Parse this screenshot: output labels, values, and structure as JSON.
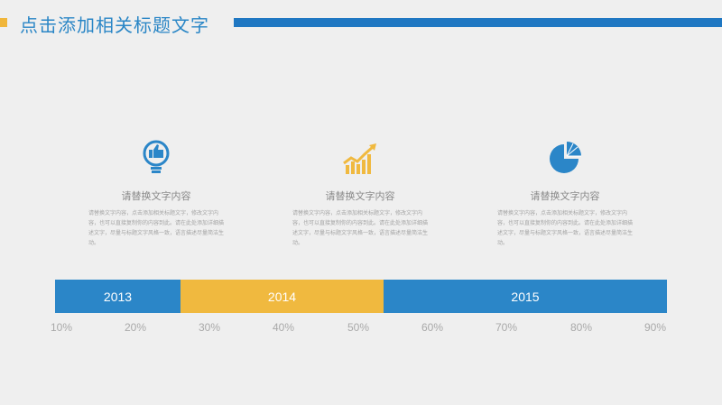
{
  "header": {
    "title": "点击添加相关标题文字",
    "colors": {
      "accent": "#f0b63b",
      "brand": "#1f77c2",
      "title": "#2a86c6"
    }
  },
  "cards": [
    {
      "icon": "lightbulb-thumbs-up-icon",
      "heading": "请替换文字内容",
      "body": "请替换文字内容，点击添加相关标题文字，修改文字内容，也可以直接复制你的内容到此。请在此处添加详细描述文字，尽量与标题文字风格一致，语言描述尽量简洁生动。"
    },
    {
      "icon": "growth-chart-icon",
      "heading": "请替换文字内容",
      "body": "请替换文字内容，点击添加相关标题文字，修改文字内容，也可以直接复制你的内容到此。请在此处添加详细描述文字，尽量与标题文字风格一致，语言描述尽量简洁生动。"
    },
    {
      "icon": "pie-chart-icon",
      "heading": "请替换文字内容",
      "body": "请替换文字内容，点击添加相关标题文字，修改文字内容，也可以直接复制你的内容到此。请在此处添加详细描述文字，尽量与标题文字风格一致，语言描述尽量简洁生动。"
    }
  ],
  "timeline": {
    "segments": [
      {
        "label": "2013",
        "color": "#2b86c8"
      },
      {
        "label": "2014",
        "color": "#f0b93f"
      },
      {
        "label": "2015",
        "color": "#2b86c8"
      }
    ],
    "ticks": [
      "10%",
      "20%",
      "30%",
      "40%",
      "50%",
      "60%",
      "70%",
      "80%",
      "90%"
    ]
  }
}
